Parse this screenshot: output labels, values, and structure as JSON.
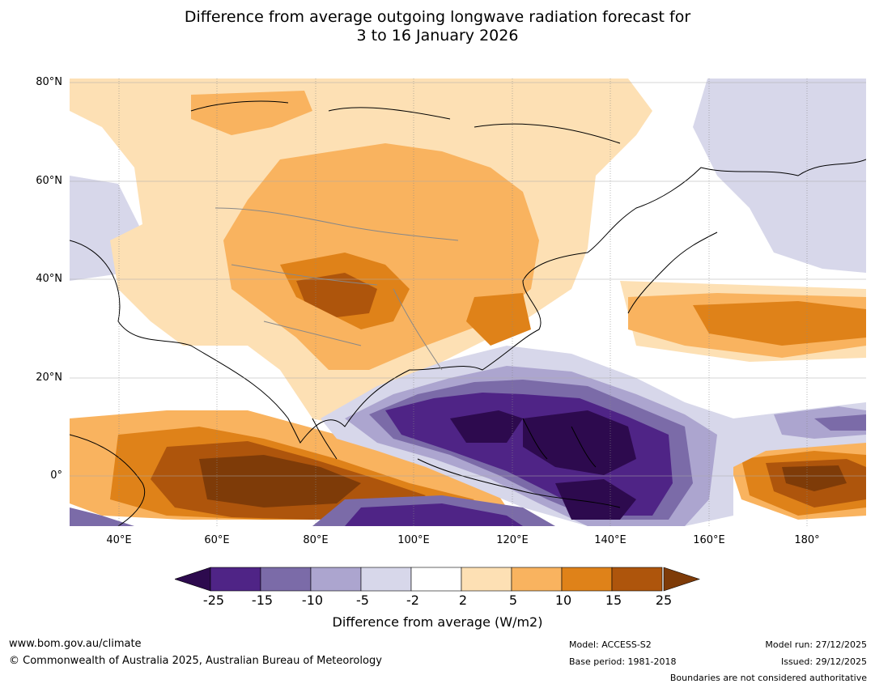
{
  "title": {
    "line1": "Difference from average outgoing longwave radiation forecast for",
    "line2": "3 to 16 January 2026"
  },
  "map": {
    "lat_labels": [
      "80°N",
      "60°N",
      "40°N",
      "20°N",
      "0°"
    ],
    "lon_labels": [
      "40°E",
      "60°E",
      "80°E",
      "100°E",
      "120°E",
      "140°E",
      "160°E",
      "180°"
    ],
    "lon_range": [
      30,
      192
    ],
    "lat_range": [
      -10,
      81
    ]
  },
  "legend": {
    "ticks": [
      "-25",
      "-15",
      "-10",
      "-5",
      "-2",
      "2",
      "5",
      "10",
      "15",
      "25"
    ],
    "label": "Difference from average (W/m2)",
    "colors": {
      "below_min": "#2d0a4e",
      "bins": [
        "#4f2486",
        "#7b6ba8",
        "#aca5cf",
        "#d7d7ea",
        "#ffffff",
        "#fde0b4",
        "#f9b35f",
        "#df8219",
        "#ae550c"
      ],
      "above_max": "#7e3b08"
    }
  },
  "footer": {
    "website": "www.bom.gov.au/climate",
    "copyright": "© Commonwealth of Australia 2025, Australian Bureau of Meteorology",
    "model": "Model: ACCESS-S2",
    "base_period": "Base period: 1981-2018",
    "model_run": "Model run: 27/12/2025",
    "issued": "Issued: 29/12/2025",
    "disclaimer": "Boundaries are not considered authoritative"
  }
}
